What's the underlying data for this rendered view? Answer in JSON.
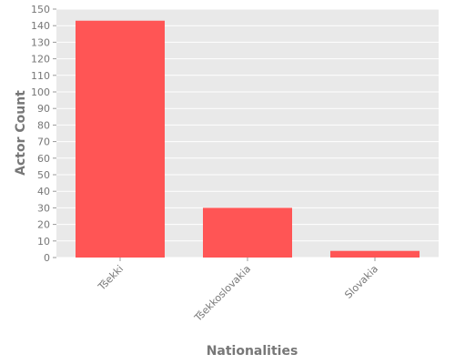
{
  "chart_data": {
    "type": "bar",
    "categories": [
      "Tšekki",
      "Tšekkoslovakia",
      "Slovakia"
    ],
    "values": [
      143,
      30,
      4
    ],
    "xlabel": "Nationalities",
    "ylabel": "Actor Count",
    "ylim": [
      0,
      150
    ],
    "yticks": [
      0,
      10,
      20,
      30,
      40,
      50,
      60,
      70,
      80,
      90,
      100,
      110,
      120,
      130,
      140,
      150
    ],
    "grid": true,
    "legend": "none",
    "colors": {
      "bar": "#FF5555",
      "plot_background": "#E9E9E9",
      "grid": "#FFFFFF",
      "text": "#777777"
    }
  }
}
